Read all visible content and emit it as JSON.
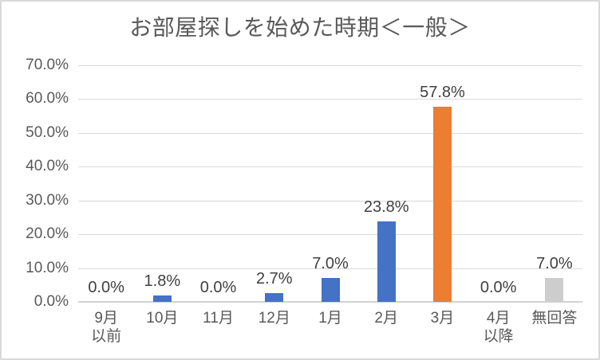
{
  "title": "お部屋探しを始めた時期＜一般＞",
  "colors": {
    "bar_blue": "#4472C4",
    "bar_orange": "#ED7D31",
    "bar_gray": "#CDCDCD",
    "gridline": "#D9D9D9",
    "axis_line": "#D2D2D2",
    "title_text": "#595959",
    "axis_text": "#595959",
    "data_label_text": "#404040",
    "frame_border": "#D9D9D9"
  },
  "chart_data": {
    "type": "bar",
    "title": "お部屋探しを始めた時期＜一般＞",
    "categories": [
      "9月\n以前",
      "10月",
      "11月",
      "12月",
      "1月",
      "2月",
      "3月",
      "4月\n以降",
      "無回答"
    ],
    "values": [
      0.0,
      1.8,
      0.0,
      2.7,
      7.0,
      23.8,
      57.8,
      0.0,
      7.0
    ],
    "data_labels": [
      "0.0%",
      "1.8%",
      "0.0%",
      "2.7%",
      "7.0%",
      "23.8%",
      "57.8%",
      "0.0%",
      "7.0%"
    ],
    "bar_colors": [
      "#4472C4",
      "#4472C4",
      "#4472C4",
      "#4472C4",
      "#4472C4",
      "#4472C4",
      "#ED7D31",
      "#4472C4",
      "#CDCDCD"
    ],
    "xlabel": "",
    "ylabel": "",
    "ylim": [
      0,
      70
    ],
    "y_tick_values": [
      0,
      10,
      20,
      30,
      40,
      50,
      60,
      70
    ],
    "y_tick_labels": [
      "0.0%",
      "10.0%",
      "20.0%",
      "30.0%",
      "40.0%",
      "50.0%",
      "60.0%",
      "70.0%"
    ],
    "grid": true,
    "legend_position": "none"
  }
}
